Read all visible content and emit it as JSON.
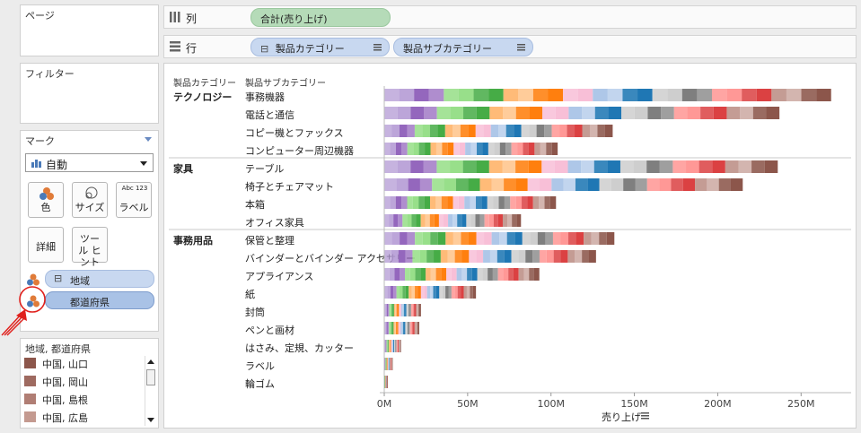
{
  "left_pane": {
    "pages_title": "ページ",
    "filters_title": "フィルター",
    "marks": {
      "title": "マーク",
      "mark_type": "自動",
      "buttons": [
        {
          "label": "色",
          "icon": "color-icon"
        },
        {
          "label": "サイズ",
          "icon": "size-icon"
        },
        {
          "label": "ラベル",
          "icon": "label-icon",
          "icon_text": "Abc 123"
        },
        {
          "label": "詳細"
        },
        {
          "label": "ツール ヒント"
        }
      ],
      "fields": [
        {
          "label": "地域",
          "prefix": "⊟"
        },
        {
          "label": "都道府県"
        }
      ]
    },
    "legend": {
      "title": "地域, 都道府県",
      "items": [
        {
          "label": "中国, 山口",
          "color": "#8c564b"
        },
        {
          "label": "中国, 岡山",
          "color": "#9e6a60"
        },
        {
          "label": "中国, 島根",
          "color": "#b07e74"
        },
        {
          "label": "中国, 広島",
          "color": "#c49a90"
        }
      ]
    }
  },
  "shelves": {
    "columns_label": "列",
    "columns_pill": "合計(売り上げ)",
    "rows_label": "行",
    "rows_pills": [
      {
        "label": "製品カテゴリー",
        "prefix": "⊟"
      },
      {
        "label": "製品サブカテゴリー"
      }
    ]
  },
  "view": {
    "header_category": "製品カテゴリー",
    "header_subcategory": "製品サブカテゴリー",
    "axis_title": "売り上げ"
  },
  "chart_data": {
    "type": "bar",
    "orientation": "horizontal",
    "stacked": true,
    "xlabel": "売り上げ",
    "xlim": [
      0,
      280000000
    ],
    "ticks": [
      "0M",
      "50M",
      "100M",
      "150M",
      "200M",
      "250M"
    ],
    "tick_values": [
      0,
      50000000,
      100000000,
      150000000,
      200000000,
      250000000
    ],
    "groups": [
      {
        "category": "テクノロジー",
        "subcategories": [
          {
            "name": "事務機器",
            "value": 268000000
          },
          {
            "name": "電話と通信",
            "value": 237000000
          },
          {
            "name": "コピー機とファックス",
            "value": 137000000
          },
          {
            "name": "コンピューター周辺機器",
            "value": 104000000
          }
        ]
      },
      {
        "category": "家具",
        "subcategories": [
          {
            "name": "テーブル",
            "value": 236000000
          },
          {
            "name": "椅子とチェアマット",
            "value": 215000000
          },
          {
            "name": "本箱",
            "value": 103000000
          },
          {
            "name": "オフィス家具",
            "value": 82000000
          }
        ]
      },
      {
        "category": "事務用品",
        "subcategories": [
          {
            "name": "保管と整理",
            "value": 138000000
          },
          {
            "name": "バインダーとバインダー アクセサリー",
            "value": 127000000
          },
          {
            "name": "アプライアンス",
            "value": 93000000
          },
          {
            "name": "紙",
            "value": 55000000
          },
          {
            "name": "封筒",
            "value": 22000000
          },
          {
            "name": "ペンと画材",
            "value": 21000000
          },
          {
            "name": "はさみ、定規、カッター",
            "value": 10000000
          },
          {
            "name": "ラベル",
            "value": 5000000
          },
          {
            "name": "輪ゴム",
            "value": 2000000
          }
        ]
      }
    ],
    "segment_palette": [
      "#b399d4",
      "#9467bd",
      "#98df8a",
      "#2ca02c",
      "#ffbb78",
      "#ff7f0e",
      "#f7b6d2",
      "#aec7e8",
      "#1f77b4",
      "#c7c7c7",
      "#7f7f7f",
      "#ff9896",
      "#d62728",
      "#c49c94",
      "#8c564b"
    ]
  }
}
